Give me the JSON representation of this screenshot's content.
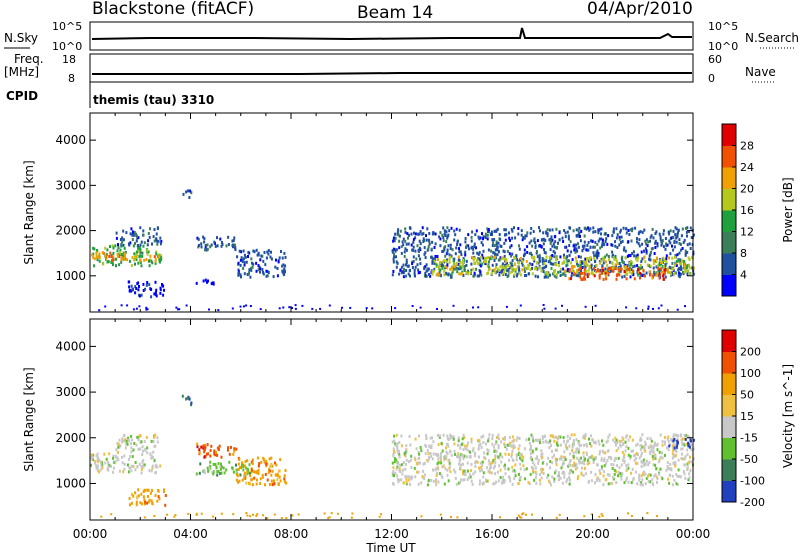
{
  "header": {
    "station": "Blackstone (fitACF)",
    "beam": "Beam 14",
    "date": "04/Apr/2010",
    "cpid_text": "themis (tau) 3310"
  },
  "strip": {
    "nsky_label": "N.Sky",
    "nsky_ticks": [
      "10^5",
      "10^0"
    ],
    "nsearch_label": "N.Search",
    "nsearch_ticks": [
      "10^5",
      "10^0"
    ],
    "freq_label": "Freq.",
    "freq_unit": "[MHz]",
    "freq_ticks": [
      "18",
      "8"
    ],
    "nave_label": "Nave",
    "nave_ticks": [
      "60",
      "0"
    ],
    "cpid_label": "CPID"
  },
  "chart_data": [
    {
      "type": "heatmap",
      "name": "power",
      "ylabel": "Slant Range [km]",
      "ylim": [
        200,
        4600
      ],
      "yticks": [
        "4000",
        "3000",
        "2000",
        "1000"
      ],
      "colorbar_label": "Power [dB]",
      "colorbar_ticks": [
        "28",
        "24",
        "20",
        "16",
        "12",
        "8",
        "4"
      ],
      "colors": [
        "#0000ff",
        "#2050a0",
        "#3a7e5a",
        "#1ea03c",
        "#b4c81e",
        "#f0a000",
        "#f05000",
        "#e00000"
      ],
      "regions": [
        {
          "x0": 0.0,
          "x1": 2.8,
          "r0": 1250,
          "r1": 1700,
          "level": 3
        },
        {
          "x0": 0.0,
          "x1": 2.8,
          "r0": 1350,
          "r1": 1550,
          "level": 5
        },
        {
          "x0": 1.0,
          "x1": 2.8,
          "r0": 1700,
          "r1": 2100,
          "level": 1
        },
        {
          "x0": 1.5,
          "x1": 3.0,
          "r0": 550,
          "r1": 900,
          "level": 0
        },
        {
          "x0": 3.6,
          "x1": 4.0,
          "r0": 2750,
          "r1": 2950,
          "level": 1
        },
        {
          "x0": 4.2,
          "x1": 5.8,
          "r0": 1600,
          "r1": 1900,
          "level": 1
        },
        {
          "x0": 4.2,
          "x1": 5.0,
          "r0": 800,
          "r1": 950,
          "level": 0
        },
        {
          "x0": 5.8,
          "x1": 7.8,
          "r0": 1000,
          "r1": 1600,
          "level": 1
        },
        {
          "x0": 12.0,
          "x1": 24.0,
          "r0": 1000,
          "r1": 2100,
          "level": 1
        },
        {
          "x0": 13.5,
          "x1": 24.0,
          "r0": 1050,
          "r1": 1450,
          "level": 4
        },
        {
          "x0": 19.0,
          "x1": 23.0,
          "r0": 950,
          "r1": 1200,
          "level": 6
        }
      ]
    },
    {
      "type": "heatmap",
      "name": "velocity",
      "ylabel": "Slant Range [km]",
      "ylim": [
        200,
        4600
      ],
      "yticks": [
        "4000",
        "3000",
        "2000",
        "1000"
      ],
      "colorbar_label": "Velocity [m s^-1]",
      "colorbar_ticks": [
        "200",
        "100",
        "50",
        "15",
        "-15",
        "-50",
        "-100",
        "-200"
      ],
      "colors": [
        "#2040c0",
        "#3a7e5a",
        "#60c030",
        "#c8c8c8",
        "#f0c040",
        "#f0a000",
        "#f05000",
        "#e00000"
      ],
      "regions": [
        {
          "x0": 0.0,
          "x1": 2.8,
          "r0": 1250,
          "r1": 1700,
          "level": 3
        },
        {
          "x0": 1.0,
          "x1": 2.8,
          "r0": 1700,
          "r1": 2100,
          "level": 3
        },
        {
          "x0": 1.5,
          "x1": 3.0,
          "r0": 550,
          "r1": 900,
          "level": 5
        },
        {
          "x0": 3.6,
          "x1": 4.0,
          "r0": 2750,
          "r1": 2950,
          "level": 0
        },
        {
          "x0": 4.2,
          "x1": 5.8,
          "r0": 1600,
          "r1": 1900,
          "level": 6
        },
        {
          "x0": 4.2,
          "x1": 6.5,
          "r0": 1200,
          "r1": 1500,
          "level": 2
        },
        {
          "x0": 5.8,
          "x1": 7.8,
          "r0": 1000,
          "r1": 1600,
          "level": 5
        },
        {
          "x0": 12.0,
          "x1": 24.0,
          "r0": 1000,
          "r1": 2100,
          "level": 3
        },
        {
          "x0": 23.0,
          "x1": 24.0,
          "r0": 1800,
          "r1": 2000,
          "level": 0
        }
      ]
    }
  ],
  "time_axis": {
    "xlabel": "Time UT",
    "ticks": [
      "00:00",
      "04:00",
      "08:00",
      "12:00",
      "16:00",
      "20:00",
      "00:00"
    ],
    "range_hours": [
      0,
      24
    ]
  }
}
